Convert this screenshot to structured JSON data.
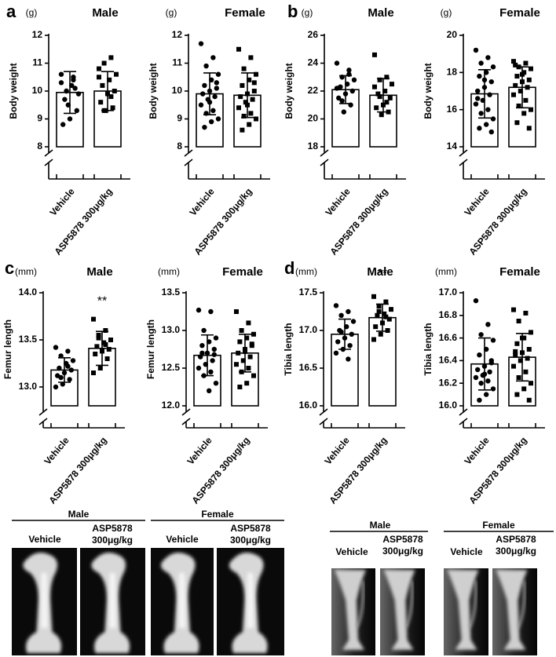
{
  "panels": [
    "a",
    "b",
    "c",
    "d"
  ],
  "chart_data": [
    {
      "type": "bar",
      "title": "Male",
      "unit": "(g)",
      "ylabel": "Body weight",
      "categories": [
        "Vehicle",
        "ASP5878 300μg/kg"
      ],
      "values": [
        9.95,
        10.0
      ],
      "errors": [
        0.75,
        0.7
      ],
      "ylim": [
        8,
        12
      ],
      "yticks": [
        8,
        9,
        10,
        11,
        12
      ],
      "color": "#ffffff",
      "markers": [
        "circle",
        "square"
      ],
      "points": [
        [
          10.3,
          10.5,
          10.0,
          9.9,
          10.2,
          9.7,
          9.3,
          9.0,
          8.8,
          10.1,
          9.5,
          10.6,
          10.4,
          10.0
        ],
        [
          10.8,
          11.2,
          11.0,
          10.6,
          10.4,
          10.2,
          10.0,
          9.9,
          9.6,
          9.4,
          9.3,
          10.5,
          9.8,
          9.3
        ]
      ]
    },
    {
      "type": "bar",
      "title": "Female",
      "unit": "(g)",
      "ylabel": "Body weight",
      "categories": [
        "Vehicle",
        "ASP5878 300μg/kg"
      ],
      "values": [
        9.9,
        9.85
      ],
      "errors": [
        0.75,
        0.8
      ],
      "ylim": [
        8,
        12
      ],
      "yticks": [
        8,
        9,
        10,
        11,
        12
      ],
      "color": "#ffffff",
      "markers": [
        "circle",
        "square"
      ],
      "points": [
        [
          11.7,
          11.2,
          10.9,
          10.6,
          10.4,
          10.2,
          10.1,
          10.0,
          9.9,
          9.8,
          9.7,
          9.5,
          9.3,
          9.2,
          9.0,
          8.9,
          8.7,
          10.3,
          9.6
        ],
        [
          11.5,
          11.2,
          10.8,
          10.6,
          10.4,
          10.2,
          10.0,
          9.9,
          9.8,
          9.7,
          9.6,
          9.4,
          9.2,
          9.1,
          9.0,
          8.8,
          8.6,
          10.3,
          9.5
        ]
      ]
    },
    {
      "type": "bar",
      "title": "Male",
      "unit": "(g)",
      "ylabel": "Body weight",
      "categories": [
        "Vehicle",
        "ASP5878 300μg/kg"
      ],
      "values": [
        22.1,
        21.7
      ],
      "errors": [
        1.0,
        1.2
      ],
      "ylim": [
        18,
        26
      ],
      "yticks": [
        18,
        20,
        22,
        24,
        26
      ],
      "color": "#ffffff",
      "markers": [
        "circle",
        "square"
      ],
      "points": [
        [
          24.0,
          23.5,
          23.0,
          22.8,
          22.5,
          22.3,
          22.0,
          21.8,
          21.5,
          21.0,
          20.5,
          22.2,
          23.2,
          21.3
        ],
        [
          24.6,
          23.0,
          22.8,
          22.5,
          22.0,
          21.8,
          21.5,
          21.0,
          20.8,
          20.5,
          20.3,
          22.3,
          21.2,
          21.6
        ]
      ]
    },
    {
      "type": "bar",
      "title": "Female",
      "unit": "(g)",
      "ylabel": "Body weight",
      "categories": [
        "Vehicle",
        "ASP5878 300μg/kg"
      ],
      "values": [
        16.85,
        17.2
      ],
      "errors": [
        1.3,
        1.1
      ],
      "ylim": [
        14,
        20
      ],
      "yticks": [
        14,
        16,
        18,
        20
      ],
      "color": "#ffffff",
      "markers": [
        "circle",
        "square"
      ],
      "points": [
        [
          19.2,
          18.8,
          18.5,
          18.3,
          18.0,
          17.8,
          17.5,
          17.2,
          17.0,
          16.8,
          16.5,
          16.3,
          16.0,
          15.8,
          15.5,
          15.2,
          15.0,
          14.8,
          17.6,
          16.6
        ],
        [
          18.6,
          18.5,
          18.3,
          18.2,
          18.0,
          17.8,
          17.6,
          17.5,
          17.3,
          17.2,
          17.0,
          16.8,
          16.5,
          16.2,
          16.0,
          15.8,
          15.3,
          15.0,
          17.9,
          18.4
        ]
      ]
    },
    {
      "type": "bar",
      "title": "Male",
      "unit": "(mm)",
      "ylabel": "Femur length",
      "categories": [
        "Vehicle",
        "ASP5878 300μg/kg"
      ],
      "values": [
        13.18,
        13.41
      ],
      "errors": [
        0.13,
        0.18
      ],
      "significance": [
        null,
        "**"
      ],
      "ylim": [
        12.8,
        14.0
      ],
      "yticks": [
        {
          "value": 13,
          "label": "13.0"
        },
        13.5,
        {
          "value": 14,
          "label": "14.0"
        }
      ],
      "color": "#ffffff",
      "markers": [
        "circle",
        "square"
      ],
      "points": [
        [
          13.42,
          13.38,
          13.33,
          13.28,
          13.25,
          13.2,
          13.18,
          13.15,
          13.12,
          13.08,
          13.03,
          13.0,
          13.22,
          13.1
        ],
        [
          13.72,
          13.6,
          13.55,
          13.5,
          13.47,
          13.43,
          13.4,
          13.38,
          13.35,
          13.3,
          13.2,
          13.15,
          13.45,
          13.52
        ]
      ]
    },
    {
      "type": "bar",
      "title": "Female",
      "unit": "(mm)",
      "ylabel": "Femur length",
      "categories": [
        "Vehicle",
        "ASP5878 300μg/kg"
      ],
      "values": [
        12.67,
        12.7
      ],
      "errors": [
        0.27,
        0.25
      ],
      "ylim": [
        12.0,
        13.5
      ],
      "yticks": [
        {
          "value": 12,
          "label": "12.0"
        },
        12.5,
        {
          "value": 13,
          "label": "13.0"
        },
        13.5
      ],
      "color": "#ffffff",
      "markers": [
        "circle",
        "square"
      ],
      "points": [
        [
          13.27,
          13.25,
          13.0,
          12.9,
          12.85,
          12.8,
          12.75,
          12.7,
          12.65,
          12.6,
          12.55,
          12.5,
          12.45,
          12.4,
          12.3,
          12.2,
          12.7,
          12.68
        ],
        [
          13.25,
          13.1,
          13.0,
          12.95,
          12.9,
          12.85,
          12.8,
          12.75,
          12.7,
          12.65,
          12.6,
          12.55,
          12.5,
          12.45,
          12.4,
          12.3,
          12.25,
          12.82,
          12.72
        ]
      ]
    },
    {
      "type": "bar",
      "title": "Male",
      "unit": "(mm)",
      "ylabel": "Tibia length",
      "categories": [
        "Vehicle",
        "ASP5878 300μg/kg"
      ],
      "values": [
        16.95,
        17.17
      ],
      "errors": [
        0.2,
        0.18
      ],
      "significance": [
        null,
        "**"
      ],
      "ylim": [
        16.0,
        17.5
      ],
      "yticks": [
        {
          "value": 16,
          "label": "16.0"
        },
        16.5,
        {
          "value": 17,
          "label": "17.0"
        },
        17.5
      ],
      "color": "#ffffff",
      "markers": [
        "circle",
        "square"
      ],
      "points": [
        [
          17.33,
          17.25,
          17.2,
          17.12,
          17.05,
          17.0,
          16.95,
          16.9,
          16.85,
          16.8,
          16.75,
          16.7,
          16.62,
          16.98
        ],
        [
          17.45,
          17.38,
          17.32,
          17.28,
          17.22,
          17.2,
          17.15,
          17.1,
          17.05,
          17.0,
          16.95,
          16.88,
          17.18,
          17.25
        ]
      ]
    },
    {
      "type": "bar",
      "title": "Female",
      "unit": "(mm)",
      "ylabel": "Tibia length",
      "categories": [
        "Vehicle",
        "ASP5878 300μg/kg"
      ],
      "values": [
        16.37,
        16.43
      ],
      "errors": [
        0.23,
        0.21
      ],
      "ylim": [
        16.0,
        17.0
      ],
      "yticks": [
        {
          "value": 16,
          "label": "16.0"
        },
        16.2,
        16.4,
        16.6,
        16.8,
        {
          "value": 17,
          "label": "17.0"
        }
      ],
      "color": "#ffffff",
      "markers": [
        "circle",
        "square"
      ],
      "points": [
        [
          16.93,
          16.72,
          16.63,
          16.58,
          16.5,
          16.45,
          16.4,
          16.35,
          16.32,
          16.3,
          16.27,
          16.25,
          16.22,
          16.2,
          16.15,
          16.1,
          16.05,
          16.38,
          16.28
        ],
        [
          16.85,
          16.82,
          16.75,
          16.65,
          16.6,
          16.55,
          16.5,
          16.47,
          16.45,
          16.42,
          16.4,
          16.35,
          16.3,
          16.25,
          16.2,
          16.15,
          16.1,
          16.05,
          16.6,
          16.48
        ]
      ]
    }
  ],
  "femur_images": {
    "groups": [
      "Male",
      "Female"
    ],
    "vehicle": "Vehicle",
    "treated": [
      "ASP5878",
      "300μg/kg"
    ]
  },
  "tibia_images": {
    "groups": [
      "Male",
      "Female"
    ],
    "vehicle": "Vehicle",
    "treated": [
      "ASP5878",
      "300μg/kg"
    ]
  }
}
